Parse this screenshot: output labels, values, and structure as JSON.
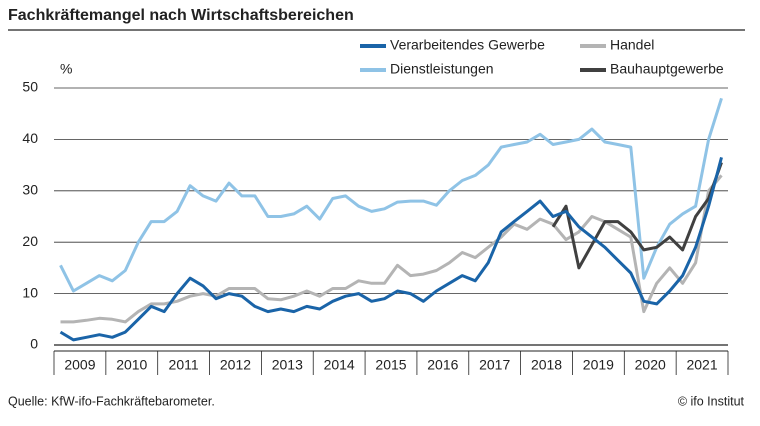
{
  "chart_data": {
    "type": "line",
    "title": "Fachkräftemangel nach Wirtschaftsbereichen",
    "y_label": "%",
    "source": "Quelle: KfW-ifo-Fachkräftebarometer.",
    "copyright": "© ifo Institut",
    "categories": [
      null,
      "2009",
      null,
      null,
      null,
      "2010",
      null,
      null,
      null,
      "2011",
      null,
      null,
      null,
      "2012",
      null,
      null,
      null,
      "2013",
      null,
      null,
      null,
      "2014",
      null,
      null,
      null,
      "2015",
      null,
      null,
      null,
      "2016",
      null,
      null,
      null,
      "2017",
      null,
      null,
      null,
      "2018",
      null,
      null,
      null,
      "2019",
      null,
      null,
      null,
      "2020",
      null,
      null,
      null,
      "2021",
      null,
      null
    ],
    "ylim": [
      0,
      50
    ],
    "yticks": [
      0,
      10,
      20,
      30,
      40,
      50
    ],
    "grid": true,
    "series": [
      {
        "name": "Verarbeitendes Gewerbe",
        "color": "#1a64a8",
        "width": 3,
        "values": [
          2.5,
          1,
          1.5,
          2,
          1.5,
          2.5,
          5,
          7.5,
          6.5,
          10,
          13,
          11.5,
          9,
          10,
          9.5,
          7.5,
          6.5,
          7,
          6.5,
          7.5,
          7,
          8.5,
          9.5,
          10,
          8.5,
          9,
          10.5,
          10,
          8.5,
          10.5,
          12,
          13.5,
          12.5,
          16,
          22,
          24,
          26,
          28,
          25,
          26,
          23,
          21,
          19,
          16.5,
          14,
          8.5,
          8,
          10.5,
          13.5,
          19,
          27,
          36.5
        ]
      },
      {
        "name": "Handel",
        "color": "#b4b4b4",
        "width": 3,
        "values": [
          4.5,
          4.5,
          4.8,
          5.2,
          5,
          4.5,
          6.5,
          8,
          8,
          8.5,
          9.5,
          10,
          9.5,
          11,
          11,
          11,
          9,
          8.8,
          9.5,
          10.5,
          9.5,
          11,
          11,
          12.5,
          12,
          12,
          15.5,
          13.5,
          13.8,
          14.5,
          16,
          18,
          17,
          19,
          21,
          23.5,
          22.5,
          24.5,
          23.5,
          20.5,
          22,
          25,
          24,
          22.5,
          21,
          6.5,
          12,
          15,
          12,
          16,
          30,
          33
        ]
      },
      {
        "name": "Dienstleistungen",
        "color": "#8fc3e6",
        "width": 3,
        "values": [
          15.5,
          10.5,
          12,
          13.5,
          12.5,
          14.5,
          20,
          24,
          24,
          26,
          31,
          29,
          28,
          31.5,
          29,
          29,
          25,
          25,
          25.5,
          27,
          24.5,
          28.5,
          29,
          27,
          26,
          26.5,
          27.8,
          28,
          28,
          27.2,
          30,
          32,
          33,
          35,
          38.5,
          39,
          39.5,
          41,
          39,
          39.5,
          40,
          42,
          39.5,
          39,
          38.5,
          13,
          19,
          23.5,
          25.5,
          27,
          40,
          48
        ]
      },
      {
        "name": "Bauhauptgewerbe",
        "color": "#404040",
        "width": 3,
        "values": [
          null,
          null,
          null,
          null,
          null,
          null,
          null,
          null,
          null,
          null,
          null,
          null,
          null,
          null,
          null,
          null,
          null,
          null,
          null,
          null,
          null,
          null,
          null,
          null,
          null,
          null,
          null,
          null,
          null,
          null,
          null,
          null,
          null,
          null,
          null,
          null,
          null,
          null,
          23,
          27,
          15,
          19.5,
          24,
          24,
          22,
          18.5,
          19,
          21,
          18.5,
          25,
          28.5,
          35.5
        ]
      }
    ]
  }
}
